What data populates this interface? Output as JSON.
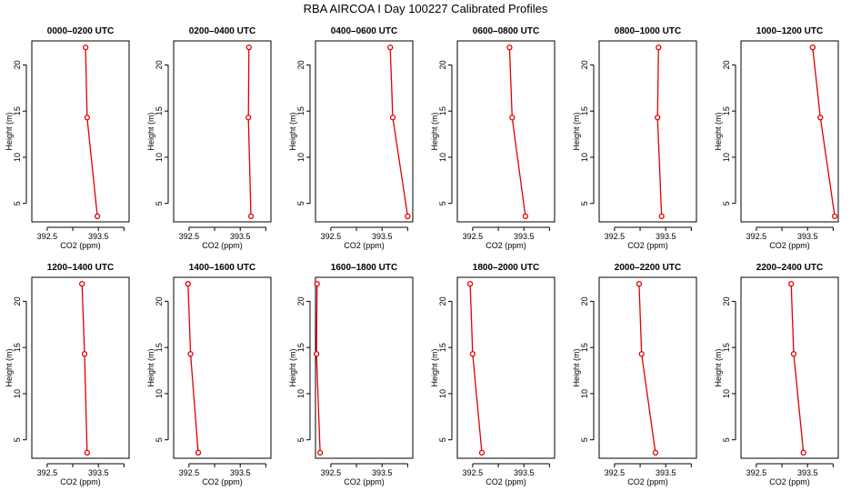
{
  "title": "RBA AIRCOA I  Day 100227  Calibrated Profiles",
  "colors": {
    "series": "#e00000",
    "axes": "#000000",
    "background": "#ffffff"
  },
  "chart_data": [
    {
      "type": "line",
      "title": "0000–0200 UTC",
      "xlabel": "CO2 (ppm)",
      "ylabel": "Height (m)",
      "xlim": [
        392.2,
        394.1
      ],
      "ylim": [
        3.0,
        22.6
      ],
      "xticks": [
        "392.5",
        "",
        "393.5",
        ""
      ],
      "yticks": [
        "5",
        "10",
        "15",
        "20"
      ],
      "series": [
        {
          "name": "profile",
          "x": [
            393.25,
            393.28,
            393.48
          ],
          "y": [
            21.9,
            14.3,
            3.6
          ]
        }
      ]
    },
    {
      "type": "line",
      "title": "0200–0400 UTC",
      "xlabel": "CO2 (ppm)",
      "ylabel": "Height (m)",
      "xlim": [
        392.2,
        394.1
      ],
      "ylim": [
        3.0,
        22.6
      ],
      "xticks": [
        "392.5",
        "",
        "393.5",
        ""
      ],
      "yticks": [
        "5",
        "10",
        "15",
        "20"
      ],
      "series": [
        {
          "name": "profile",
          "x": [
            393.67,
            393.66,
            393.71
          ],
          "y": [
            21.9,
            14.3,
            3.6
          ]
        }
      ]
    },
    {
      "type": "line",
      "title": "0400–0600 UTC",
      "xlabel": "CO2 (ppm)",
      "ylabel": "Height (m)",
      "xlim": [
        392.2,
        394.1
      ],
      "ylim": [
        3.0,
        22.6
      ],
      "xticks": [
        "392.5",
        "",
        "393.5",
        ""
      ],
      "yticks": [
        "5",
        "10",
        "15",
        "20"
      ],
      "series": [
        {
          "name": "profile",
          "x": [
            393.66,
            393.71,
            394.0
          ],
          "y": [
            21.9,
            14.3,
            3.6
          ]
        }
      ]
    },
    {
      "type": "line",
      "title": "0600–0800 UTC",
      "xlabel": "CO2 (ppm)",
      "ylabel": "Height (m)",
      "xlim": [
        392.2,
        394.1
      ],
      "ylim": [
        3.0,
        22.6
      ],
      "xticks": [
        "392.5",
        "",
        "393.5",
        ""
      ],
      "yticks": [
        "5",
        "10",
        "15",
        "20"
      ],
      "series": [
        {
          "name": "profile",
          "x": [
            393.22,
            393.27,
            393.53
          ],
          "y": [
            21.9,
            14.3,
            3.6
          ]
        }
      ]
    },
    {
      "type": "line",
      "title": "0800–1000 UTC",
      "xlabel": "CO2 (ppm)",
      "ylabel": "Height (m)",
      "xlim": [
        392.2,
        394.1
      ],
      "ylim": [
        3.0,
        22.6
      ],
      "xticks": [
        "392.5",
        "",
        "393.5",
        ""
      ],
      "yticks": [
        "5",
        "10",
        "15",
        "20"
      ],
      "series": [
        {
          "name": "profile",
          "x": [
            393.36,
            393.34,
            393.42
          ],
          "y": [
            21.9,
            14.3,
            3.6
          ]
        }
      ]
    },
    {
      "type": "line",
      "title": "1000–1200 UTC",
      "xlabel": "CO2 (ppm)",
      "ylabel": "Height (m)",
      "xlim": [
        392.2,
        394.1
      ],
      "ylim": [
        3.0,
        22.6
      ],
      "xticks": [
        "392.5",
        "",
        "393.5",
        ""
      ],
      "yticks": [
        "5",
        "10",
        "15",
        "20"
      ],
      "series": [
        {
          "name": "profile",
          "x": [
            393.6,
            393.75,
            394.03
          ],
          "y": [
            21.9,
            14.3,
            3.6
          ]
        }
      ]
    },
    {
      "type": "line",
      "title": "1200–1400 UTC",
      "xlabel": "CO2 (ppm)",
      "ylabel": "Height (m)",
      "xlim": [
        392.2,
        394.1
      ],
      "ylim": [
        3.0,
        22.6
      ],
      "xticks": [
        "392.5",
        "",
        "393.5",
        ""
      ],
      "yticks": [
        "5",
        "10",
        "15",
        "20"
      ],
      "series": [
        {
          "name": "profile",
          "x": [
            393.18,
            393.23,
            393.28
          ],
          "y": [
            21.9,
            14.3,
            3.6
          ]
        }
      ]
    },
    {
      "type": "line",
      "title": "1400–1600 UTC",
      "xlabel": "CO2 (ppm)",
      "ylabel": "Height (m)",
      "xlim": [
        392.2,
        394.1
      ],
      "ylim": [
        3.0,
        22.6
      ],
      "xticks": [
        "392.5",
        "",
        "393.5",
        ""
      ],
      "yticks": [
        "5",
        "10",
        "15",
        "20"
      ],
      "series": [
        {
          "name": "profile",
          "x": [
            392.48,
            392.53,
            392.68
          ],
          "y": [
            21.9,
            14.3,
            3.6
          ]
        }
      ]
    },
    {
      "type": "line",
      "title": "1600–1800 UTC",
      "xlabel": "CO2 (ppm)",
      "ylabel": "Height (m)",
      "xlim": [
        392.2,
        394.1
      ],
      "ylim": [
        3.0,
        22.6
      ],
      "xticks": [
        "392.5",
        "",
        "393.5",
        ""
      ],
      "yticks": [
        "5",
        "10",
        "15",
        "20"
      ],
      "series": [
        {
          "name": "profile",
          "x": [
            392.23,
            392.22,
            392.29
          ],
          "y": [
            21.9,
            14.3,
            3.6
          ]
        }
      ]
    },
    {
      "type": "line",
      "title": "1800–2000 UTC",
      "xlabel": "CO2 (ppm)",
      "ylabel": "Height (m)",
      "xlim": [
        392.2,
        394.1
      ],
      "ylim": [
        3.0,
        22.6
      ],
      "xticks": [
        "392.5",
        "",
        "393.5",
        ""
      ],
      "yticks": [
        "5",
        "10",
        "15",
        "20"
      ],
      "series": [
        {
          "name": "profile",
          "x": [
            392.45,
            392.5,
            392.68
          ],
          "y": [
            21.9,
            14.3,
            3.6
          ]
        }
      ]
    },
    {
      "type": "line",
      "title": "2000–2200 UTC",
      "xlabel": "CO2 (ppm)",
      "ylabel": "Height (m)",
      "xlim": [
        392.2,
        394.1
      ],
      "ylim": [
        3.0,
        22.6
      ],
      "xticks": [
        "392.5",
        "",
        "393.5",
        ""
      ],
      "yticks": [
        "5",
        "10",
        "15",
        "20"
      ],
      "series": [
        {
          "name": "profile",
          "x": [
            392.98,
            393.03,
            393.3
          ],
          "y": [
            21.9,
            14.3,
            3.6
          ]
        }
      ]
    },
    {
      "type": "line",
      "title": "2200–2400 UTC",
      "xlabel": "CO2 (ppm)",
      "ylabel": "Height (m)",
      "xlim": [
        392.2,
        394.1
      ],
      "ylim": [
        3.0,
        22.6
      ],
      "xticks": [
        "392.5",
        "",
        "393.5",
        ""
      ],
      "yticks": [
        "5",
        "10",
        "15",
        "20"
      ],
      "series": [
        {
          "name": "profile",
          "x": [
            393.18,
            393.23,
            393.42
          ],
          "y": [
            21.9,
            14.3,
            3.6
          ]
        }
      ]
    }
  ]
}
